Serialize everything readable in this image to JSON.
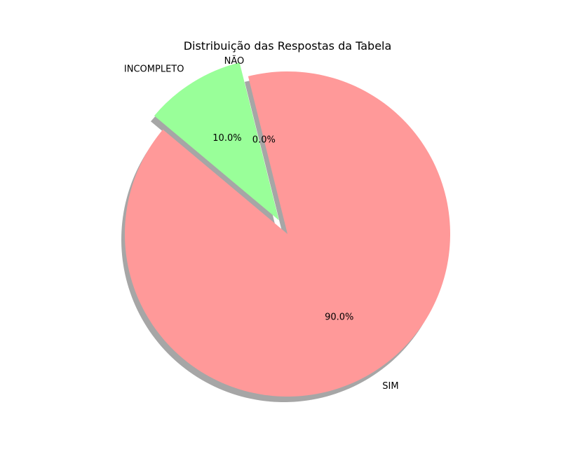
{
  "chart_data": {
    "type": "pie",
    "title": "Distribuição das Respostas da Tabela",
    "slices": [
      {
        "label": "SIM",
        "value": 90.0,
        "pct_label": "90.0%",
        "color": "#ff9999",
        "explode": false
      },
      {
        "label": "NÃO",
        "value": 0.0,
        "pct_label": "0.0%",
        "color": "#66b3ff",
        "explode": false
      },
      {
        "label": "INCOMPLETO",
        "value": 10.0,
        "pct_label": "10.0%",
        "color": "#99ff99",
        "explode": true
      }
    ],
    "start_angle": 140,
    "direction": "counterclockwise",
    "shadow": true,
    "legend": "none"
  }
}
